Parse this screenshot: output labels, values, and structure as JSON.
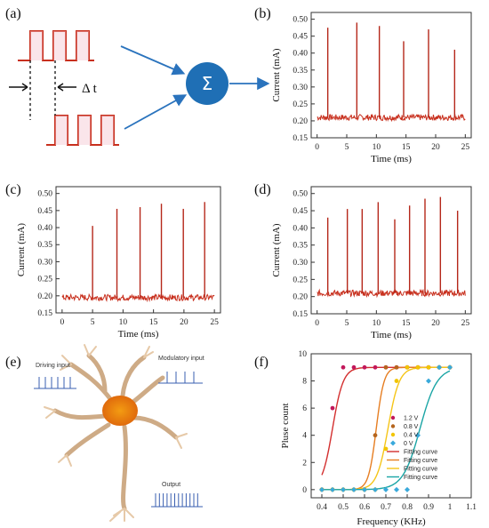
{
  "panels": {
    "a": {
      "label": "(a)",
      "delta_t": "Δ t",
      "sum_symbol": "Σ"
    },
    "b": {
      "label": "(b)"
    },
    "c": {
      "label": "(c)"
    },
    "d": {
      "label": "(d)"
    },
    "e": {
      "label": "(e)",
      "driving_input": "Driving input",
      "modulatory_input": "Modulatory input",
      "output": "Output"
    },
    "f": {
      "label": "(f)"
    }
  },
  "colors": {
    "signal": "#c8301e",
    "spike": "#b5271a",
    "sum_circle": "#1f6fb5",
    "arrow": "#2a73bd",
    "neuron": "#e07b1a"
  },
  "chart_data": [
    {
      "id": "b",
      "type": "line",
      "xlabel": "Time (ms)",
      "ylabel": "Current (mA)",
      "xlim": [
        -1,
        26
      ],
      "ylim": [
        0.15,
        0.52
      ],
      "xticks": [
        0,
        5,
        10,
        15,
        20,
        25
      ],
      "yticks": [
        0.15,
        0.2,
        0.25,
        0.3,
        0.35,
        0.4,
        0.45,
        0.5
      ],
      "baseline": 0.21,
      "x_range": [
        0,
        25
      ],
      "spikes": [
        {
          "x": 1.8,
          "y": 0.475
        },
        {
          "x": 6.7,
          "y": 0.49
        },
        {
          "x": 10.5,
          "y": 0.48
        },
        {
          "x": 14.6,
          "y": 0.435
        },
        {
          "x": 18.8,
          "y": 0.47
        },
        {
          "x": 23.2,
          "y": 0.41
        }
      ]
    },
    {
      "id": "c",
      "type": "line",
      "xlabel": "Time (ms)",
      "ylabel": "Current (mA)",
      "xlim": [
        -1,
        26
      ],
      "ylim": [
        0.15,
        0.52
      ],
      "xticks": [
        0,
        5,
        10,
        15,
        20,
        25
      ],
      "yticks": [
        0.15,
        0.2,
        0.25,
        0.3,
        0.35,
        0.4,
        0.45,
        0.5
      ],
      "baseline": 0.195,
      "x_range": [
        0,
        25
      ],
      "spikes": [
        {
          "x": 5.0,
          "y": 0.405
        },
        {
          "x": 9.0,
          "y": 0.455
        },
        {
          "x": 12.8,
          "y": 0.46
        },
        {
          "x": 16.3,
          "y": 0.47
        },
        {
          "x": 19.9,
          "y": 0.455
        },
        {
          "x": 23.4,
          "y": 0.475
        }
      ]
    },
    {
      "id": "d",
      "type": "line",
      "xlabel": "Time (ms)",
      "ylabel": "Current (mA)",
      "xlim": [
        -1,
        26
      ],
      "ylim": [
        0.15,
        0.52
      ],
      "xticks": [
        0,
        5,
        10,
        15,
        20,
        25
      ],
      "yticks": [
        0.15,
        0.2,
        0.25,
        0.3,
        0.35,
        0.4,
        0.45,
        0.5
      ],
      "baseline": 0.21,
      "x_range": [
        0,
        25
      ],
      "spikes": [
        {
          "x": 1.8,
          "y": 0.43
        },
        {
          "x": 5.1,
          "y": 0.455
        },
        {
          "x": 7.6,
          "y": 0.455
        },
        {
          "x": 10.3,
          "y": 0.475
        },
        {
          "x": 13.1,
          "y": 0.425
        },
        {
          "x": 15.6,
          "y": 0.465
        },
        {
          "x": 18.2,
          "y": 0.485
        },
        {
          "x": 20.8,
          "y": 0.49
        },
        {
          "x": 23.7,
          "y": 0.45
        }
      ]
    },
    {
      "id": "f",
      "type": "scatter",
      "xlabel": "Frequency (KHz)",
      "ylabel": "Pluse count",
      "xlim": [
        0.35,
        1.1
      ],
      "ylim": [
        -0.6,
        10
      ],
      "xticks": [
        0.4,
        0.5,
        0.6,
        0.7,
        0.8,
        0.9,
        1.0,
        1.1
      ],
      "yticks": [
        0,
        2,
        4,
        6,
        8,
        10
      ],
      "series": [
        {
          "name": "1.2 V",
          "color": "#c2185b",
          "marker": "circle",
          "curve_color": "#d32f2f",
          "x": [
            0.4,
            0.45,
            0.5,
            0.55,
            0.6,
            0.65,
            0.7,
            0.75,
            0.8,
            0.85,
            0.9,
            0.95,
            1.0
          ],
          "y": [
            0,
            6,
            9,
            9,
            9,
            9,
            9,
            9,
            9,
            9,
            9,
            9,
            9
          ],
          "fit": {
            "x0": 0.45,
            "k": 40
          }
        },
        {
          "name": "0.8 V",
          "color": "#b5651d",
          "marker": "circle",
          "curve_color": "#e67e22",
          "x": [
            0.4,
            0.45,
            0.5,
            0.55,
            0.6,
            0.65,
            0.7,
            0.75,
            0.8,
            0.85,
            0.9,
            0.95,
            1.0
          ],
          "y": [
            0,
            0,
            0,
            0,
            0,
            4,
            9,
            9,
            9,
            9,
            9,
            9,
            9
          ],
          "fit": {
            "x0": 0.655,
            "k": 55
          }
        },
        {
          "name": "0.4 V",
          "color": "#f2c500",
          "marker": "circle",
          "curve_color": "#f5c518",
          "x": [
            0.4,
            0.45,
            0.5,
            0.55,
            0.6,
            0.65,
            0.7,
            0.75,
            0.8,
            0.85,
            0.9,
            0.95,
            1.0
          ],
          "y": [
            0,
            0,
            0,
            0,
            0,
            0,
            3,
            8,
            9,
            9,
            9,
            9,
            9
          ],
          "fit": {
            "x0": 0.71,
            "k": 38
          }
        },
        {
          "name": "0 V",
          "color": "#39a9db",
          "marker": "diamond",
          "curve_color": "#1aa5a5",
          "x": [
            0.4,
            0.45,
            0.5,
            0.55,
            0.6,
            0.65,
            0.7,
            0.75,
            0.8,
            0.85,
            0.9,
            0.95,
            1.0
          ],
          "y": [
            0,
            0,
            0,
            0,
            0,
            0,
            0,
            0,
            0,
            4,
            8,
            9,
            9
          ],
          "fit": {
            "x0": 0.86,
            "k": 25
          }
        }
      ],
      "legend": [
        "1.2 V",
        "0.8 V",
        "0.4 V",
        "0 V",
        "Fitting curve",
        "Fitting curve",
        "Fitting curve",
        "Fitting curve"
      ],
      "legend_position": "bottom-right"
    }
  ]
}
